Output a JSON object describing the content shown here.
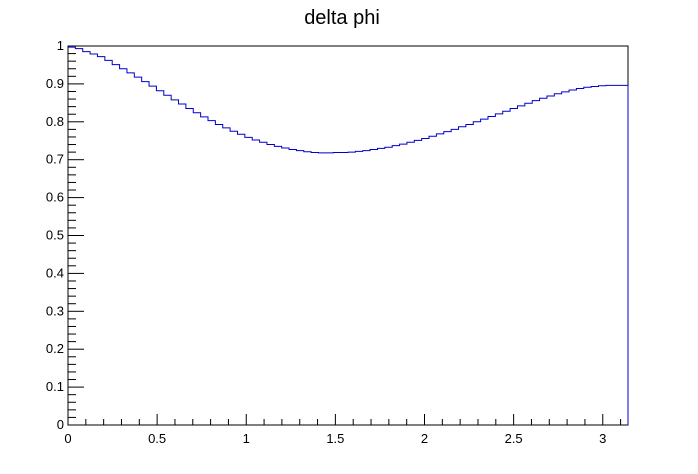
{
  "chart_data": {
    "type": "line",
    "style": "step-histogram",
    "title": "delta phi",
    "xlabel": "",
    "ylabel": "",
    "xlim": [
      0,
      3.14159
    ],
    "ylim": [
      0,
      1.0
    ],
    "x_ticks": [
      {
        "value": 0,
        "label": "0"
      },
      {
        "value": 0.5,
        "label": "0.5"
      },
      {
        "value": 1,
        "label": "1"
      },
      {
        "value": 1.5,
        "label": "1.5"
      },
      {
        "value": 2,
        "label": "2"
      },
      {
        "value": 2.5,
        "label": "2.5"
      },
      {
        "value": 3,
        "label": "3"
      }
    ],
    "y_ticks": [
      {
        "value": 0,
        "label": "0"
      },
      {
        "value": 0.1,
        "label": "0.1"
      },
      {
        "value": 0.2,
        "label": "0.2"
      },
      {
        "value": 0.3,
        "label": "0.3"
      },
      {
        "value": 0.4,
        "label": "0.4"
      },
      {
        "value": 0.5,
        "label": "0.5"
      },
      {
        "value": 0.6,
        "label": "0.6"
      },
      {
        "value": 0.7,
        "label": "0.7"
      },
      {
        "value": 0.8,
        "label": "0.8"
      },
      {
        "value": 0.9,
        "label": "0.9"
      },
      {
        "value": 1,
        "label": "1"
      }
    ],
    "series": [
      {
        "color": "#0000cc",
        "bin_edges_from": 0,
        "bin_edges_to": 3.14159,
        "values": [
          0.997,
          0.993,
          0.985,
          0.979,
          0.972,
          0.962,
          0.951,
          0.94,
          0.929,
          0.918,
          0.906,
          0.894,
          0.882,
          0.87,
          0.858,
          0.847,
          0.835,
          0.824,
          0.813,
          0.803,
          0.793,
          0.784,
          0.775,
          0.767,
          0.759,
          0.752,
          0.746,
          0.74,
          0.735,
          0.731,
          0.727,
          0.724,
          0.721,
          0.719,
          0.718,
          0.718,
          0.719,
          0.719,
          0.72,
          0.722,
          0.724,
          0.727,
          0.73,
          0.733,
          0.737,
          0.741,
          0.746,
          0.751,
          0.756,
          0.762,
          0.768,
          0.774,
          0.78,
          0.787,
          0.793,
          0.8,
          0.807,
          0.814,
          0.821,
          0.828,
          0.835,
          0.842,
          0.849,
          0.856,
          0.862,
          0.868,
          0.874,
          0.879,
          0.884,
          0.888,
          0.891,
          0.893,
          0.895,
          0.896,
          0.896,
          0.896
        ]
      }
    ]
  }
}
